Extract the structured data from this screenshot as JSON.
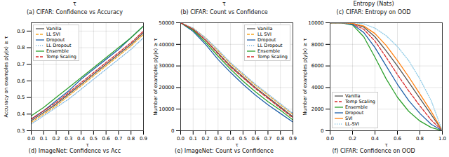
{
  "chart_data": [
    {
      "type": "caption",
      "title": "(a) CIFAR: Confidence vs Accuracy",
      "xlabel": "τ"
    },
    {
      "type": "caption",
      "title": "(b) CIFAR: Count vs Confidence",
      "xlabel": "τ"
    },
    {
      "type": "caption",
      "title": "(c) CIFAR: Entropy on OOD",
      "xlabel": "Entropy (Nats)"
    },
    {
      "type": "line",
      "title": "(d) ImageNet: Confidence vs Acc",
      "xlabel": "τ",
      "ylabel": "Accuracy on examples p(y|x) ≥ τ",
      "x": [
        0,
        0.1,
        0.2,
        0.3,
        0.4,
        0.5,
        0.6,
        0.7,
        0.8,
        0.9
      ],
      "xlim": [
        0,
        0.9
      ],
      "xticks": [
        {
          "value": 0,
          "label": "0.0"
        },
        0.1,
        0.2,
        0.3,
        0.4,
        0.5,
        0.6,
        0.7,
        0.8,
        0.9
      ],
      "ylim": [
        0.3,
        0.95
      ],
      "yticks": [
        0.3,
        0.4,
        0.5,
        0.6,
        0.7,
        0.8,
        0.9
      ],
      "grid": true,
      "legend": "upper left",
      "series": [
        {
          "name": "Vanilla",
          "color": "#555555",
          "line_style": "solid",
          "values": [
            0.36,
            0.41,
            0.46,
            0.52,
            0.58,
            0.64,
            0.7,
            0.76,
            0.82,
            0.89
          ]
        },
        {
          "name": "LL SVI",
          "color": "#f5a623",
          "line_style": "dashed",
          "values": [
            0.35,
            0.4,
            0.45,
            0.51,
            0.57,
            0.63,
            0.69,
            0.75,
            0.81,
            0.88
          ]
        },
        {
          "name": "Dropout",
          "color": "#1f5fa8",
          "line_style": "solid",
          "values": [
            0.37,
            0.42,
            0.48,
            0.54,
            0.61,
            0.67,
            0.73,
            0.79,
            0.86,
            0.93
          ]
        },
        {
          "name": "LL Dropout",
          "color": "#7fb7e0",
          "line_style": "dotted",
          "values": [
            0.34,
            0.39,
            0.44,
            0.49,
            0.55,
            0.61,
            0.67,
            0.73,
            0.79,
            0.86
          ]
        },
        {
          "name": "Ensemble",
          "color": "#2ca02c",
          "line_style": "solid",
          "values": [
            0.39,
            0.44,
            0.5,
            0.56,
            0.62,
            0.68,
            0.74,
            0.8,
            0.86,
            0.93
          ]
        },
        {
          "name": "Temp Scaling",
          "color": "#d62728",
          "line_style": "dashed",
          "values": [
            0.37,
            0.42,
            0.47,
            0.53,
            0.59,
            0.65,
            0.71,
            0.77,
            0.83,
            0.9
          ]
        }
      ]
    },
    {
      "type": "line",
      "title": "(e) ImageNet: Count vs Confidence",
      "xlabel": "τ",
      "ylabel": "Number of examples p(y|x) ≥ τ",
      "x": [
        0,
        0.1,
        0.2,
        0.3,
        0.4,
        0.5,
        0.6,
        0.7,
        0.8,
        0.9
      ],
      "xlim": [
        0,
        0.9
      ],
      "xticks": [
        {
          "value": 0,
          "label": "0.0"
        },
        0.1,
        0.2,
        0.3,
        0.4,
        0.5,
        0.6,
        0.7,
        0.8,
        0.9
      ],
      "ylim": [
        0,
        50000
      ],
      "yticks": [
        0,
        10000,
        20000,
        30000,
        40000,
        50000
      ],
      "grid": true,
      "legend": "upper right",
      "series": [
        {
          "name": "Vanilla",
          "color": "#555555",
          "line_style": "solid",
          "values": [
            50000,
            47000,
            42000,
            36000,
            30000,
            25000,
            20000,
            15500,
            11000,
            6500
          ]
        },
        {
          "name": "LL SVI",
          "color": "#f5a623",
          "line_style": "dashed",
          "values": [
            50000,
            47500,
            43000,
            37000,
            31000,
            26000,
            21000,
            16500,
            12000,
            7500
          ]
        },
        {
          "name": "Dropout",
          "color": "#1f5fa8",
          "line_style": "solid",
          "values": [
            50000,
            46000,
            40000,
            33000,
            27000,
            21500,
            16500,
            12000,
            8000,
            4000
          ]
        },
        {
          "name": "LL Dropout",
          "color": "#7fb7e0",
          "line_style": "dotted",
          "values": [
            50000,
            47500,
            43000,
            37500,
            31500,
            26500,
            21500,
            17000,
            12500,
            8000
          ]
        },
        {
          "name": "Ensemble",
          "color": "#2ca02c",
          "line_style": "solid",
          "values": [
            50000,
            46500,
            41000,
            34500,
            28500,
            23000,
            18000,
            13500,
            9500,
            5000
          ]
        },
        {
          "name": "Temp Scaling",
          "color": "#d62728",
          "line_style": "dashed",
          "values": [
            50000,
            47000,
            42000,
            35500,
            29500,
            24500,
            19500,
            15000,
            10500,
            6000
          ]
        }
      ]
    },
    {
      "type": "line",
      "title": "(f) CIFAR: Confidence on OOD",
      "xlabel": "τ",
      "ylabel": "Number of examples p(y|x) ≥ τ",
      "x": [
        0,
        0.1,
        0.2,
        0.3,
        0.4,
        0.5,
        0.6,
        0.7,
        0.8,
        0.9,
        1.0
      ],
      "xlim": [
        0,
        1
      ],
      "xticks": [
        {
          "value": 0,
          "label": "0.0"
        },
        0.2,
        0.4,
        0.6,
        0.8,
        {
          "value": 1,
          "label": "1.0"
        }
      ],
      "ylim": [
        0,
        10000
      ],
      "yticks": [
        0,
        2000,
        4000,
        6000,
        8000,
        10000
      ],
      "grid": true,
      "legend": "lower left",
      "series": [
        {
          "name": "Vanilla",
          "color": "#555555",
          "line_style": "solid",
          "values": [
            10000,
            10000,
            9950,
            9600,
            8700,
            7400,
            6000,
            4500,
            3000,
            1500,
            0
          ]
        },
        {
          "name": "Temp Scaling",
          "color": "#d62728",
          "line_style": "dashed",
          "values": [
            10000,
            10000,
            9900,
            9400,
            8300,
            6800,
            5200,
            3700,
            2300,
            1000,
            0
          ]
        },
        {
          "name": "Ensemble",
          "color": "#2ca02c",
          "line_style": "solid",
          "values": [
            10000,
            10000,
            9800,
            8700,
            6800,
            4800,
            3100,
            1800,
            900,
            300,
            0
          ]
        },
        {
          "name": "Dropout",
          "color": "#1f5fa8",
          "line_style": "solid",
          "values": [
            10000,
            10000,
            9850,
            9100,
            7700,
            6000,
            4300,
            2800,
            1600,
            600,
            0
          ]
        },
        {
          "name": "SVI",
          "color": "#ff7f0e",
          "line_style": "solid",
          "values": [
            10000,
            10000,
            9950,
            9700,
            9000,
            7900,
            6500,
            5000,
            3400,
            1800,
            0
          ]
        },
        {
          "name": "LL-SVI",
          "color": "#8ecae6",
          "line_style": "dotted",
          "values": [
            10000,
            10000,
            10000,
            9900,
            9500,
            8800,
            7800,
            6500,
            4800,
            2800,
            0
          ]
        }
      ]
    }
  ]
}
